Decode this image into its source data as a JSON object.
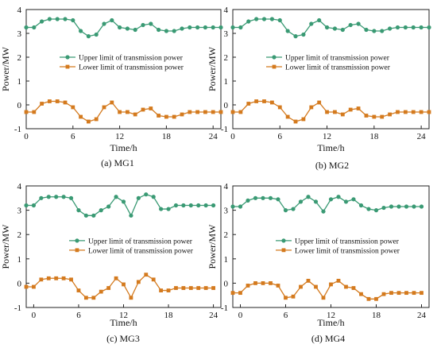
{
  "colors": {
    "upper": "#3a9a74",
    "lower": "#d47a1e",
    "axis": "#222222"
  },
  "chart_data": [
    {
      "type": "line",
      "caption": "(a) MG1",
      "xlabel": "Time/h",
      "ylabel": "Power/MW",
      "xlim": [
        0,
        25
      ],
      "ylim": [
        -1,
        4
      ],
      "xticks": [
        0,
        6,
        12,
        18,
        24
      ],
      "yticks": [
        -1,
        0,
        1,
        2,
        3,
        4
      ],
      "legend": "center-left",
      "x": [
        0,
        1,
        2,
        3,
        4,
        5,
        6,
        7,
        8,
        9,
        10,
        11,
        12,
        13,
        14,
        15,
        16,
        17,
        18,
        19,
        20,
        21,
        22,
        23,
        24,
        25
      ],
      "series": [
        {
          "name": "Upper limit of transmission power",
          "marker": "circle",
          "values": [
            3.25,
            3.25,
            3.5,
            3.6,
            3.6,
            3.6,
            3.55,
            3.1,
            2.88,
            2.95,
            3.4,
            3.55,
            3.25,
            3.2,
            3.15,
            3.35,
            3.4,
            3.15,
            3.1,
            3.1,
            3.2,
            3.25,
            3.25,
            3.25,
            3.25,
            3.25
          ]
        },
        {
          "name": "Lower limit of transmission power",
          "marker": "square",
          "values": [
            -0.3,
            -0.3,
            0.05,
            0.15,
            0.15,
            0.1,
            -0.1,
            -0.5,
            -0.7,
            -0.6,
            -0.1,
            0.1,
            -0.3,
            -0.3,
            -0.4,
            -0.2,
            -0.15,
            -0.45,
            -0.5,
            -0.5,
            -0.4,
            -0.3,
            -0.3,
            -0.3,
            -0.3,
            -0.3
          ]
        }
      ]
    },
    {
      "type": "line",
      "caption": "(b) MG2",
      "xlabel": "Time/h",
      "ylabel": "Power/MW",
      "xlim": [
        0,
        25
      ],
      "ylim": [
        -1,
        4
      ],
      "xticks": [
        0,
        6,
        12,
        18,
        24
      ],
      "yticks": [
        -1,
        0,
        1,
        2,
        3,
        4
      ],
      "legend": "center-left",
      "x": [
        0,
        1,
        2,
        3,
        4,
        5,
        6,
        7,
        8,
        9,
        10,
        11,
        12,
        13,
        14,
        15,
        16,
        17,
        18,
        19,
        20,
        21,
        22,
        23,
        24,
        25
      ],
      "series": [
        {
          "name": "Upper limit of transmission power",
          "marker": "circle",
          "values": [
            3.25,
            3.25,
            3.5,
            3.6,
            3.6,
            3.6,
            3.55,
            3.1,
            2.88,
            2.95,
            3.4,
            3.55,
            3.25,
            3.2,
            3.15,
            3.35,
            3.4,
            3.15,
            3.1,
            3.1,
            3.2,
            3.25,
            3.25,
            3.25,
            3.25,
            3.25
          ]
        },
        {
          "name": "Lower limit of transmission power",
          "marker": "square",
          "values": [
            -0.3,
            -0.3,
            0.05,
            0.15,
            0.15,
            0.1,
            -0.1,
            -0.5,
            -0.7,
            -0.6,
            -0.1,
            0.1,
            -0.3,
            -0.3,
            -0.4,
            -0.2,
            -0.15,
            -0.45,
            -0.5,
            -0.5,
            -0.4,
            -0.3,
            -0.3,
            -0.3,
            -0.3,
            -0.3
          ]
        }
      ]
    },
    {
      "type": "line",
      "caption": "(c) MG3",
      "xlabel": "Time/h",
      "ylabel": "Power/MW",
      "xlim": [
        -1,
        25
      ],
      "ylim": [
        -1,
        4
      ],
      "xticks": [
        0,
        6,
        12,
        18,
        24
      ],
      "yticks": [
        -1,
        0,
        1,
        2,
        3,
        4
      ],
      "legend": "center-left",
      "x": [
        -1,
        0,
        1,
        2,
        3,
        4,
        5,
        6,
        7,
        8,
        9,
        10,
        11,
        12,
        13,
        14,
        15,
        16,
        17,
        18,
        19,
        20,
        21,
        22,
        23,
        24
      ],
      "series": [
        {
          "name": "Upper limit of transmission power",
          "marker": "circle",
          "values": [
            3.2,
            3.2,
            3.5,
            3.55,
            3.55,
            3.55,
            3.5,
            3.0,
            2.78,
            2.78,
            3.0,
            3.15,
            3.55,
            3.35,
            2.78,
            3.5,
            3.65,
            3.55,
            3.05,
            3.05,
            3.2,
            3.2,
            3.2,
            3.2,
            3.2,
            3.2
          ]
        },
        {
          "name": "Lower limit of transmission power",
          "marker": "square",
          "values": [
            -0.15,
            -0.15,
            0.15,
            0.2,
            0.2,
            0.2,
            0.15,
            -0.3,
            -0.6,
            -0.6,
            -0.35,
            -0.2,
            0.2,
            -0.05,
            -0.6,
            0.05,
            0.35,
            0.15,
            -0.3,
            -0.3,
            -0.2,
            -0.2,
            -0.2,
            -0.2,
            -0.2,
            -0.2
          ]
        }
      ]
    },
    {
      "type": "line",
      "caption": "(d) MG4",
      "xlabel": "Time/h",
      "ylabel": "Power/MW",
      "xlim": [
        -1,
        25
      ],
      "ylim": [
        -1,
        4
      ],
      "xticks": [
        0,
        6,
        12,
        18,
        24
      ],
      "yticks": [
        -1,
        0,
        1,
        2,
        3,
        4
      ],
      "legend": "center-left",
      "x": [
        -1,
        0,
        1,
        2,
        3,
        4,
        5,
        6,
        7,
        8,
        9,
        10,
        11,
        12,
        13,
        14,
        15,
        16,
        17,
        18,
        19,
        20,
        21,
        22,
        23,
        24
      ],
      "series": [
        {
          "name": "Upper limit of transmission power",
          "marker": "circle",
          "values": [
            3.15,
            3.15,
            3.4,
            3.5,
            3.5,
            3.5,
            3.45,
            3.0,
            3.05,
            3.35,
            3.55,
            3.35,
            2.95,
            3.45,
            3.55,
            3.35,
            3.45,
            3.2,
            3.05,
            3.0,
            3.1,
            3.15,
            3.15,
            3.15,
            3.15,
            3.15
          ]
        },
        {
          "name": "Lower limit of transmission power",
          "marker": "square",
          "values": [
            -0.4,
            -0.4,
            -0.1,
            0.0,
            0.0,
            0.0,
            -0.1,
            -0.6,
            -0.55,
            -0.15,
            0.1,
            -0.15,
            -0.6,
            -0.05,
            0.1,
            -0.15,
            -0.2,
            -0.45,
            -0.65,
            -0.65,
            -0.45,
            -0.4,
            -0.4,
            -0.4,
            -0.4,
            -0.4
          ]
        }
      ]
    }
  ]
}
